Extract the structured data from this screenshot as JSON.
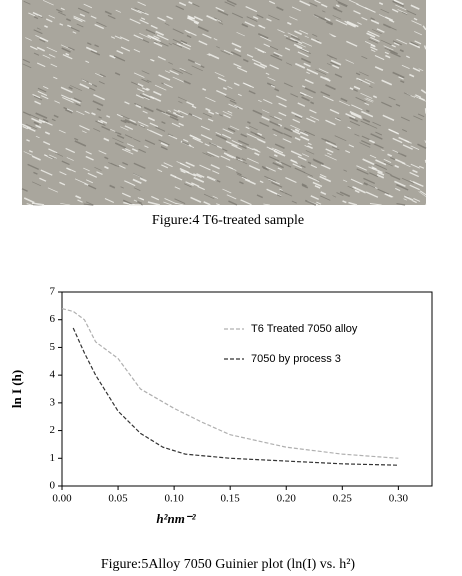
{
  "figure4_caption": "Figure:4 T6-treated sample",
  "figure5_caption": "Figure:5Alloy 7050 Guinier plot (ln(I) vs. h²)",
  "chart_data": {
    "type": "line",
    "xlabel": "h²nm⁻²",
    "ylabel": "ln I (h)",
    "xlim": [
      0,
      0.33
    ],
    "ylim": [
      0,
      7
    ],
    "xticks": [
      {
        "value": 0,
        "label": "0.00"
      },
      {
        "value": 0.05,
        "label": "0.05"
      },
      {
        "value": 0.1,
        "label": "0.10"
      },
      {
        "value": 0.15,
        "label": "0.15"
      },
      {
        "value": 0.2,
        "label": "0.20"
      },
      {
        "value": 0.25,
        "label": "0.25"
      },
      {
        "value": 0.3,
        "label": "0.30"
      }
    ],
    "yticks": [
      0,
      1,
      2,
      3,
      4,
      5,
      6,
      7
    ],
    "legend": "upper right",
    "series": [
      {
        "name": "T6 Treated 7050 alloy",
        "color": "#b0b0b0",
        "x": [
          0.0,
          0.01,
          0.02,
          0.03,
          0.05,
          0.07,
          0.1,
          0.125,
          0.15,
          0.2,
          0.25,
          0.3
        ],
        "values": [
          6.4,
          6.3,
          6.0,
          5.2,
          4.6,
          3.5,
          2.8,
          2.3,
          1.85,
          1.4,
          1.15,
          1.0
        ]
      },
      {
        "name": "7050 by process 3",
        "color": "#333333",
        "x": [
          0.01,
          0.02,
          0.03,
          0.05,
          0.07,
          0.09,
          0.11,
          0.15,
          0.2,
          0.25,
          0.3
        ],
        "values": [
          5.7,
          4.8,
          4.0,
          2.7,
          1.9,
          1.4,
          1.15,
          1.0,
          0.9,
          0.8,
          0.75
        ]
      }
    ]
  }
}
